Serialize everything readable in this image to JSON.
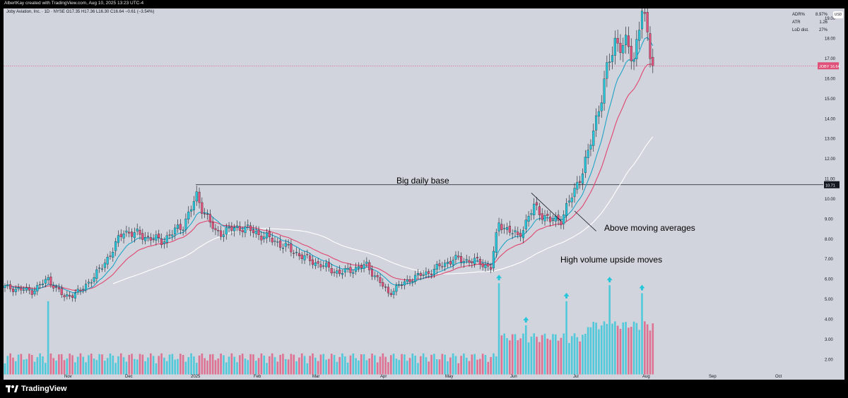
{
  "header": {
    "credit": "AlbertKay created with TradingView.com, Aug 10, 2025 13:23 UTC-4"
  },
  "legend": {
    "symbol_line": "Joby Aviation, Inc. · 1D · NYSE  O17.35  H17.36  L16.30  C16.64  −0.61 (−3.54%)"
  },
  "stats": [
    {
      "label": "ADR%",
      "value": "8.97%"
    },
    {
      "label": "ATR",
      "value": "1.26"
    },
    {
      "label": "LoD dist.",
      "value": "27%"
    }
  ],
  "currency": "USD",
  "branding": {
    "name": "TradingView"
  },
  "colors": {
    "up": "#26c6da",
    "down": "#e0517a",
    "ema_fast": "#1fa3c7",
    "ema_mid": "#e0456f",
    "sma_slow": "#ffffff",
    "background": "#d1d4dc",
    "price_tag": "#e0517a"
  },
  "chart_data": {
    "type": "candlestick",
    "title": "",
    "x_labels": [
      "Nov",
      "Dec",
      "2025",
      "Feb",
      "Mar",
      "Apr",
      "May",
      "Jun",
      "Jul",
      "Aug",
      "Sep",
      "Oct"
    ],
    "y_ticks": [
      2.0,
      3.0,
      4.0,
      5.0,
      6.0,
      7.0,
      8.0,
      9.0,
      10.0,
      11.0,
      12.0,
      13.0,
      14.0,
      15.0,
      16.0,
      17.0,
      18.0,
      19.0
    ],
    "ylim": [
      1.2,
      19.5
    ],
    "current_price": {
      "label": "JOBY",
      "value": 16.64
    },
    "base_level": {
      "value": 10.71,
      "label": "10.71"
    },
    "annotations": [
      "Big daily base",
      "Above moving averages",
      "High volume upside moves"
    ],
    "bars": 240,
    "close_points": [
      {
        "bar": 0,
        "close": 5.6
      },
      {
        "bar": 10,
        "close": 5.4
      },
      {
        "bar": 16,
        "close": 6.0
      },
      {
        "bar": 22,
        "close": 5.1
      },
      {
        "bar": 28,
        "close": 5.4
      },
      {
        "bar": 36,
        "close": 6.6
      },
      {
        "bar": 44,
        "close": 8.4
      },
      {
        "bar": 50,
        "close": 8.2
      },
      {
        "bar": 58,
        "close": 7.9
      },
      {
        "bar": 66,
        "close": 8.7
      },
      {
        "bar": 71,
        "close": 10.1
      },
      {
        "bar": 78,
        "close": 8.3
      },
      {
        "bar": 88,
        "close": 8.6
      },
      {
        "bar": 100,
        "close": 7.9
      },
      {
        "bar": 112,
        "close": 7.0
      },
      {
        "bar": 124,
        "close": 6.3
      },
      {
        "bar": 134,
        "close": 6.7
      },
      {
        "bar": 142,
        "close": 5.3
      },
      {
        "bar": 150,
        "close": 6.0
      },
      {
        "bar": 158,
        "close": 6.4
      },
      {
        "bar": 166,
        "close": 7.0
      },
      {
        "bar": 174,
        "close": 6.9
      },
      {
        "bar": 180,
        "close": 6.6
      },
      {
        "bar": 183,
        "close": 8.8
      },
      {
        "bar": 190,
        "close": 8.1
      },
      {
        "bar": 196,
        "close": 9.6
      },
      {
        "bar": 202,
        "close": 8.9
      },
      {
        "bar": 206,
        "close": 9.0
      },
      {
        "bar": 211,
        "close": 10.4
      },
      {
        "bar": 216,
        "close": 12.2
      },
      {
        "bar": 222,
        "close": 15.8
      },
      {
        "bar": 226,
        "close": 17.9
      },
      {
        "bar": 230,
        "close": 17.6
      },
      {
        "bar": 233,
        "close": 17.0
      },
      {
        "bar": 236,
        "close": 19.6
      },
      {
        "bar": 238,
        "close": 17.9
      },
      {
        "bar": 240,
        "close": 16.64
      }
    ],
    "volume_spikes": [
      {
        "bar": 16,
        "volume": 4.9
      },
      {
        "bar": 183,
        "volume": 5.8
      },
      {
        "bar": 193,
        "volume": 3.7
      },
      {
        "bar": 208,
        "volume": 4.9
      },
      {
        "bar": 224,
        "volume": 5.7
      },
      {
        "bar": 236,
        "volume": 5.3
      }
    ]
  }
}
